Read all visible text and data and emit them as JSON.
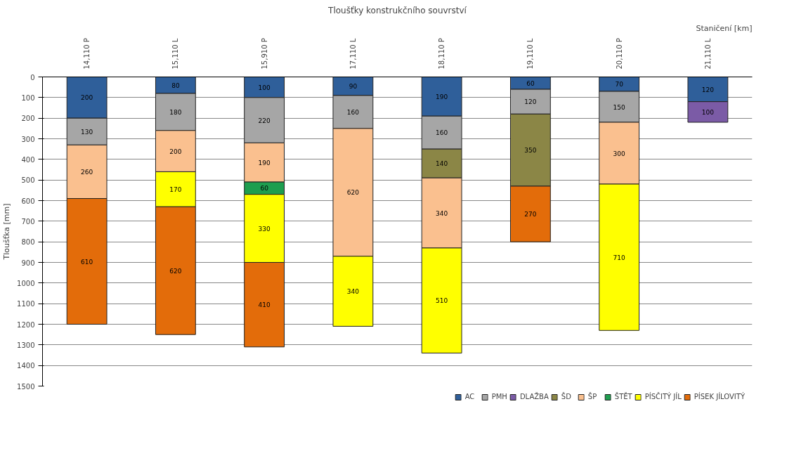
{
  "chart_data": {
    "type": "bar",
    "stacked": true,
    "title": "Tloušťky konstrukčního souvrství",
    "xlabel": "Staničení [km]",
    "ylabel": "Tloušťka [mm]",
    "categories": [
      "14,110 P",
      "15,110 L",
      "15,910 P",
      "17,110 L",
      "18,110 P",
      "19,110 L",
      "20,110 P",
      "21,110 L"
    ],
    "series": [
      {
        "name": "AC",
        "color": "#2f5f9a",
        "values": [
          200,
          80,
          100,
          90,
          190,
          60,
          70,
          120
        ]
      },
      {
        "name": "PMH",
        "color": "#a6a6a6",
        "values": [
          130,
          180,
          220,
          160,
          160,
          120,
          150,
          null
        ]
      },
      {
        "name": "DLAŽBA",
        "color": "#7b5ba6",
        "values": [
          null,
          null,
          null,
          null,
          null,
          null,
          null,
          100
        ]
      },
      {
        "name": "ŠD",
        "color": "#8b8646",
        "values": [
          null,
          null,
          null,
          null,
          140,
          350,
          null,
          null
        ]
      },
      {
        "name": "ŠP",
        "color": "#fac08f",
        "values": [
          260,
          200,
          190,
          620,
          340,
          null,
          300,
          null
        ]
      },
      {
        "name": "ŠTĚT",
        "color": "#1e9e4f",
        "values": [
          null,
          null,
          60,
          null,
          null,
          null,
          null,
          null
        ]
      },
      {
        "name": "PÍSČITÝ JÍL",
        "color": "#ffff00",
        "values": [
          null,
          170,
          330,
          340,
          510,
          null,
          710,
          null
        ]
      },
      {
        "name": "PÍSEK JÍLOVITÝ",
        "color": "#e36c0a",
        "values": [
          610,
          620,
          410,
          null,
          null,
          270,
          null,
          null
        ]
      }
    ],
    "ylim": [
      1500,
      0
    ],
    "yticks": [
      0,
      100,
      200,
      300,
      400,
      500,
      600,
      700,
      800,
      900,
      1000,
      1100,
      1200,
      1300,
      1400,
      1500
    ],
    "grid": "y",
    "legend": "bottom",
    "data_labels": true
  }
}
